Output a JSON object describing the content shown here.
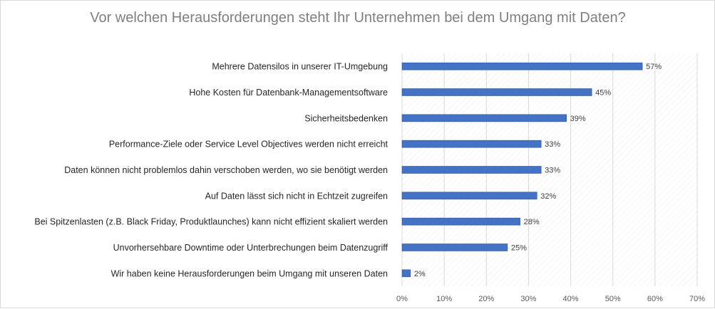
{
  "chart_data": {
    "type": "bar",
    "orientation": "horizontal",
    "title": "Vor welchen Herausforderungen steht Ihr Unternehmen bei dem Umgang mit Daten?",
    "categories": [
      "Mehrere Datensilos in unserer IT-Umgebung",
      "Hohe Kosten für Datenbank-Managementsoftware",
      "Sicherheitsbedenken",
      "Performance-Ziele oder Service Level Objectives werden nicht erreicht",
      "Daten können nicht problemlos dahin verschoben werden, wo sie benötigt werden",
      "Auf Daten lässt sich nicht in Echtzeit zugreifen",
      "Bei Spitzenlasten (z.B. Black Friday, Produktlaunches) kann nicht effizient skaliert werden",
      "Unvorhersehbare Downtime oder Unterbrechungen beim Datenzugriff",
      "Wir haben keine Herausforderungen beim Umgang mit unseren Daten"
    ],
    "values": [
      57,
      45,
      39,
      33,
      33,
      32,
      28,
      25,
      2
    ],
    "value_labels": [
      "57%",
      "45%",
      "39%",
      "33%",
      "33%",
      "32%",
      "28%",
      "25%",
      "2%"
    ],
    "xlim": [
      0,
      70
    ],
    "x_ticks": [
      0,
      10,
      20,
      30,
      40,
      50,
      60,
      70
    ],
    "x_tick_labels": [
      "0%",
      "10%",
      "20%",
      "30%",
      "40%",
      "50%",
      "60%",
      "70%"
    ],
    "xlabel": "",
    "ylabel": "",
    "grid": true,
    "legend": "none",
    "colors": {
      "bar": "#4472c4",
      "bar_edge": "#2f5597",
      "title": "#7f7f7f",
      "grid": "#d9d9d9",
      "plot_hatch": "#ececec"
    }
  }
}
